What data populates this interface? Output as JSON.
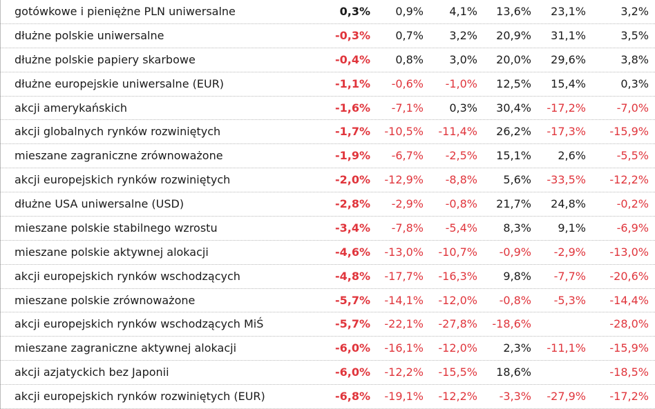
{
  "table": {
    "rows": [
      [
        "gotówkowe i pieniężne PLN uniwersalne",
        "0,3%",
        "0,9%",
        "4,1%",
        "13,6%",
        "23,1%",
        "3,2%"
      ],
      [
        "dłużne polskie uniwersalne",
        "-0,3%",
        "0,7%",
        "3,2%",
        "20,9%",
        "31,1%",
        "3,5%"
      ],
      [
        "dłużne polskie papiery skarbowe",
        "-0,4%",
        "0,8%",
        "3,0%",
        "20,0%",
        "29,6%",
        "3,8%"
      ],
      [
        "dłużne europejskie uniwersalne (EUR)",
        "-1,1%",
        "-0,6%",
        "-1,0%",
        "12,5%",
        "15,4%",
        "0,3%"
      ],
      [
        "akcji amerykańskich",
        "-1,6%",
        "-7,1%",
        "0,3%",
        "30,4%",
        "-17,2%",
        "-7,0%"
      ],
      [
        "akcji globalnych rynków rozwiniętych",
        "-1,7%",
        "-10,5%",
        "-11,4%",
        "26,2%",
        "-17,3%",
        "-15,9%"
      ],
      [
        "mieszane zagraniczne zrównoważone",
        "-1,9%",
        "-6,7%",
        "-2,5%",
        "15,1%",
        "2,6%",
        "-5,5%"
      ],
      [
        "akcji europejskich rynków rozwiniętych",
        "-2,0%",
        "-12,9%",
        "-8,8%",
        "5,6%",
        "-33,5%",
        "-12,2%"
      ],
      [
        "dłużne USA uniwersalne (USD)",
        "-2,8%",
        "-2,9%",
        "-0,8%",
        "21,7%",
        "24,8%",
        "-0,2%"
      ],
      [
        "mieszane polskie stabilnego wzrostu",
        "-3,4%",
        "-7,8%",
        "-5,4%",
        "8,3%",
        "9,1%",
        "-6,9%"
      ],
      [
        "mieszane polskie aktywnej alokacji",
        "-4,6%",
        "-13,0%",
        "-10,7%",
        "-0,9%",
        "-2,9%",
        "-13,0%"
      ],
      [
        "akcji europejskich rynków wschodzących",
        "-4,8%",
        "-17,7%",
        "-16,3%",
        "9,8%",
        "-7,7%",
        "-20,6%"
      ],
      [
        "mieszane polskie zrównoważone",
        "-5,7%",
        "-14,1%",
        "-12,0%",
        "-0,8%",
        "-5,3%",
        "-14,4%"
      ],
      [
        "akcji europejskich rynków wschodzących MiŚ",
        "-5,7%",
        "-22,1%",
        "-27,8%",
        "-18,6%",
        null,
        "-28,0%"
      ],
      [
        "mieszane zagraniczne aktywnej alokacji",
        "-6,0%",
        "-16,1%",
        "-12,0%",
        "2,3%",
        "-11,1%",
        "-15,9%"
      ],
      [
        "akcji azjatyckich bez Japonii",
        "-6,0%",
        "-12,2%",
        "-15,5%",
        "18,6%",
        null,
        "-18,5%"
      ],
      [
        "akcji europejskich rynków rozwiniętych (EUR)",
        "-6,8%",
        "-19,1%",
        "-12,2%",
        "-3,3%",
        "-27,9%",
        "-17,2%"
      ]
    ]
  }
}
